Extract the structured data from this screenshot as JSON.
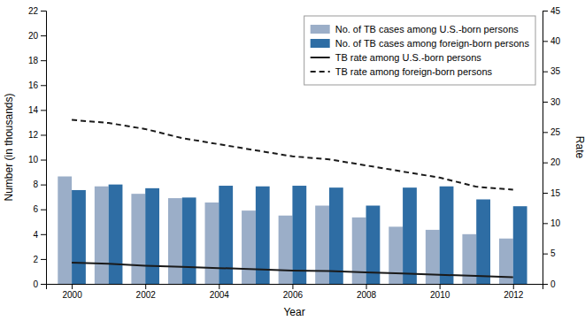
{
  "chart_data": {
    "type": "bar",
    "x": [
      2000,
      2001,
      2002,
      2003,
      2004,
      2005,
      2006,
      2007,
      2008,
      2009,
      2010,
      2011,
      2012
    ],
    "xlabel": "Year",
    "ylabel": "Number (in thousands)",
    "y2label": "Rate",
    "xlim": [
      1999.3,
      2012.8
    ],
    "xticks": [
      2000,
      2002,
      2004,
      2006,
      2008,
      2010,
      2012
    ],
    "ylim": [
      0,
      22
    ],
    "yticks": [
      0,
      2,
      4,
      6,
      8,
      10,
      12,
      14,
      16,
      18,
      20,
      22
    ],
    "y2lim": [
      0,
      45
    ],
    "y2ticks": [
      0,
      5,
      10,
      15,
      20,
      25,
      30,
      35,
      40,
      45
    ],
    "legend": "upper right",
    "series": [
      {
        "name": "No. of TB cases among U.S.-born persons",
        "color": "#9baec8",
        "values": [
          8.65,
          7.85,
          7.25,
          6.9,
          6.55,
          5.9,
          5.5,
          6.3,
          5.35,
          4.6,
          4.35,
          4.0,
          3.65
        ]
      },
      {
        "name": "No. of TB cases among foreign-born persons",
        "color": "#2e6da4",
        "values": [
          7.55,
          8.0,
          7.7,
          6.95,
          7.9,
          7.85,
          7.9,
          7.75,
          6.3,
          7.75,
          7.85,
          6.8,
          6.25
        ]
      },
      {
        "name": "TB rate among U.S.-born persons",
        "type": "line",
        "axis": "y2",
        "color": "#1a1a1a",
        "line_style": "solid",
        "values": [
          3.5,
          3.3,
          3.0,
          2.8,
          2.6,
          2.4,
          2.2,
          2.1,
          1.9,
          1.7,
          1.5,
          1.3,
          1.1
        ]
      },
      {
        "name": "TB rate among foreign-born persons",
        "type": "line",
        "axis": "y2",
        "color": "#1a1a1a",
        "line_style": "dashed",
        "values": [
          27.0,
          26.5,
          25.5,
          24.0,
          23.0,
          22.0,
          21.0,
          20.5,
          19.5,
          18.5,
          17.5,
          16.0,
          15.5
        ]
      }
    ]
  }
}
